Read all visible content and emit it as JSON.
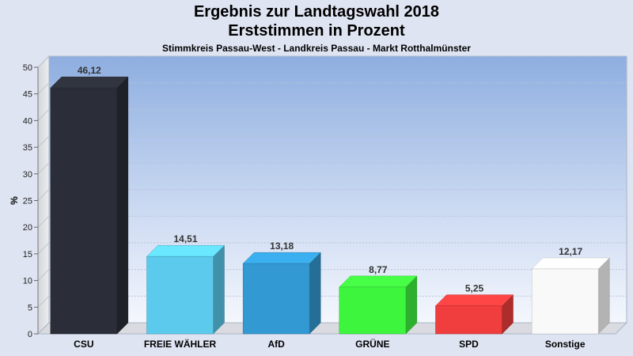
{
  "header": {
    "title": "Ergebnis zur Landtagswahl 2018",
    "subtitle": "Erststimmen in Prozent",
    "region": "Stimmkreis Passau-West - Landkreis Passau - Markt Rotthalmünster"
  },
  "chart_data": {
    "type": "bar",
    "title": "Ergebnis zur Landtagswahl 2018",
    "subtitle": "Erststimmen in Prozent",
    "xlabel": "",
    "ylabel": "%",
    "ylim": [
      0,
      50
    ],
    "yticks": [
      0,
      5,
      10,
      15,
      20,
      25,
      30,
      35,
      40,
      45,
      50
    ],
    "grid": true,
    "legend": "none",
    "categories": [
      "CSU",
      "FREIE WÄHLER",
      "AfD",
      "GRÜNE",
      "SPD",
      "Sonstige"
    ],
    "values": [
      46.12,
      14.51,
      13.18,
      8.77,
      5.25,
      12.17
    ],
    "value_labels": [
      "46,12",
      "14,51",
      "13,18",
      "8,77",
      "5,25",
      "12,17"
    ],
    "colors": [
      "#2b2e38",
      "#5bcaec",
      "#3399d2",
      "#3ef53e",
      "#f03d3d",
      "#f9f9f9"
    ]
  }
}
